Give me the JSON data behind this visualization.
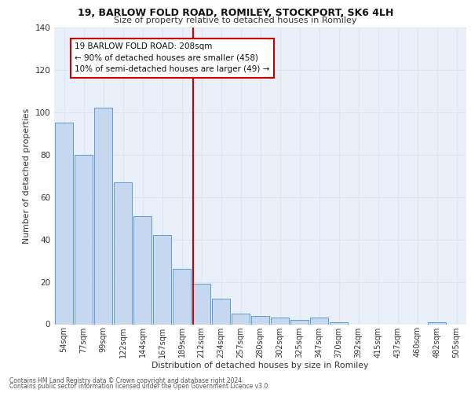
{
  "title_line1": "19, BARLOW FOLD ROAD, ROMILEY, STOCKPORT, SK6 4LH",
  "title_line2": "Size of property relative to detached houses in Romiley",
  "xlabel": "Distribution of detached houses by size in Romiley",
  "ylabel": "Number of detached properties",
  "categories": [
    "54sqm",
    "77sqm",
    "99sqm",
    "122sqm",
    "144sqm",
    "167sqm",
    "189sqm",
    "212sqm",
    "234sqm",
    "257sqm",
    "280sqm",
    "302sqm",
    "325sqm",
    "347sqm",
    "370sqm",
    "392sqm",
    "415sqm",
    "437sqm",
    "460sqm",
    "482sqm",
    "505sqm"
  ],
  "values": [
    95,
    80,
    102,
    67,
    51,
    42,
    26,
    19,
    12,
    5,
    4,
    3,
    2,
    3,
    1,
    0,
    0,
    0,
    0,
    1,
    0
  ],
  "bar_color": "#c5d8f0",
  "bar_edge_color": "#5b9bd5",
  "vline_index": 7,
  "annotation_line1": "19 BARLOW FOLD ROAD: 208sqm",
  "annotation_line2": "← 90% of detached houses are smaller (458)",
  "annotation_line3": "10% of semi-detached houses are larger (49) →",
  "annotation_box_color": "#ffffff",
  "annotation_box_edge": "#cc0000",
  "vline_color": "#cc0000",
  "grid_color": "#dce6f1",
  "ylim": [
    0,
    140
  ],
  "yticks": [
    0,
    20,
    40,
    60,
    80,
    100,
    120,
    140
  ],
  "footer_line1": "Contains HM Land Registry data © Crown copyright and database right 2024.",
  "footer_line2": "Contains public sector information licensed under the Open Government Licence v3.0.",
  "bg_color": "#eaf0f9"
}
